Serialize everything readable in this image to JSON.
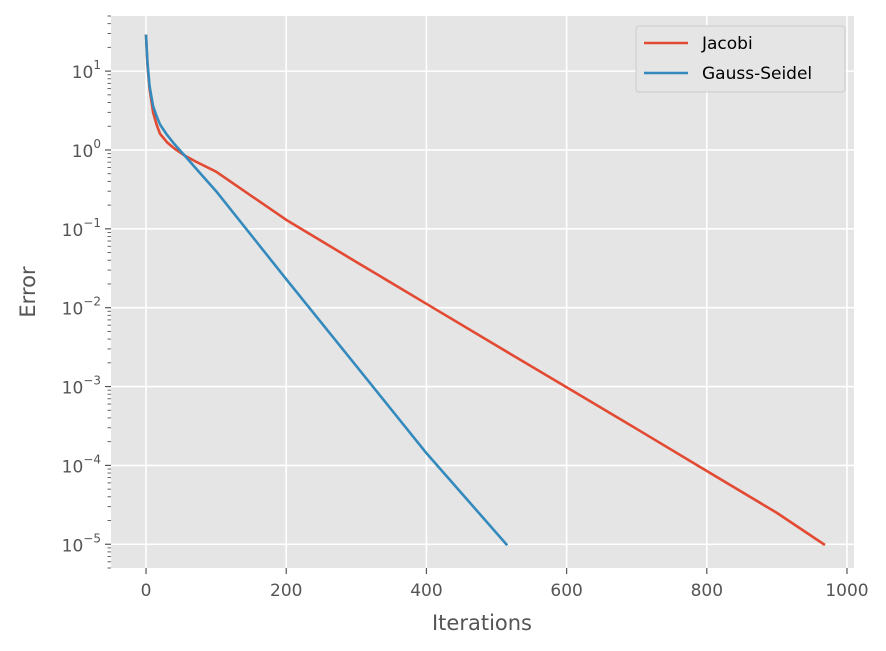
{
  "chart_data": {
    "type": "line",
    "xlabel": "Iterations",
    "ylabel": "Error",
    "xlim": [
      -50,
      1010
    ],
    "ylim": [
      5e-06,
      50
    ],
    "yscale": "log",
    "grid": true,
    "legend_position": "top-right",
    "x_ticks": [
      0,
      200,
      400,
      600,
      800,
      1000
    ],
    "x_tick_labels": [
      "0",
      "200",
      "400",
      "600",
      "800",
      "1000"
    ],
    "y_ticks": [
      -5,
      -4,
      -3,
      -2,
      -1,
      0,
      1
    ],
    "y_tick_labels": [
      {
        "base": "10",
        "exp": "−5"
      },
      {
        "base": "10",
        "exp": "−4"
      },
      {
        "base": "10",
        "exp": "−3"
      },
      {
        "base": "10",
        "exp": "−2"
      },
      {
        "base": "10",
        "exp": "−1"
      },
      {
        "base": "10",
        "exp": "0"
      },
      {
        "base": "10",
        "exp": "1"
      }
    ],
    "series": [
      {
        "name": "Jacobi",
        "color": "#E24A33",
        "x": [
          0,
          2,
          5,
          10,
          15,
          20,
          30,
          40,
          55,
          70,
          100,
          200,
          300,
          400,
          500,
          600,
          700,
          800,
          900,
          967
        ],
        "y": [
          28,
          12,
          6,
          3.0,
          2.1,
          1.6,
          1.25,
          1.05,
          0.85,
          0.72,
          0.53,
          0.13,
          0.038,
          0.0112,
          0.0033,
          0.00098,
          0.00029,
          8.5e-05,
          2.5e-05,
          1e-05
        ]
      },
      {
        "name": "Gauss-Seidel",
        "color": "#348ABD",
        "x": [
          0,
          2,
          5,
          10,
          15,
          20,
          30,
          40,
          55,
          70,
          100,
          200,
          300,
          400,
          514
        ],
        "y": [
          28,
          13,
          6.5,
          3.6,
          2.7,
          2.1,
          1.55,
          1.2,
          0.85,
          0.6,
          0.3,
          0.023,
          0.00182,
          0.000143,
          1e-05
        ]
      }
    ]
  }
}
